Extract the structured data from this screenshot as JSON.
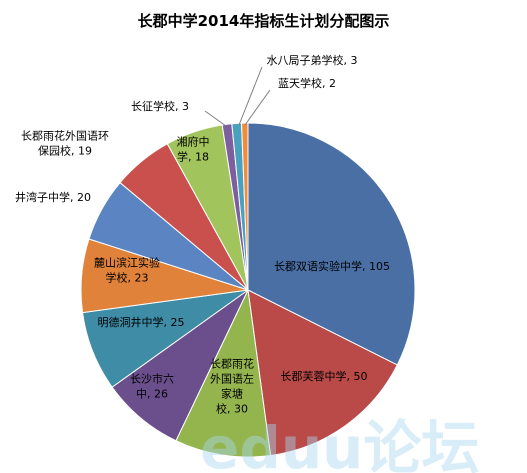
{
  "chart_data": {
    "type": "pie",
    "title": "长郡中学2014年指标生计划分配图示",
    "slices": [
      {
        "name": "长郡双语实验中学",
        "value": 105,
        "label": [
          "长郡双语实验中学, 105"
        ],
        "color": "#4a6fa5"
      },
      {
        "name": "长郡芙蓉中学",
        "value": 50,
        "label": [
          "长郡芙蓉中学, 50"
        ],
        "color": "#b94a48"
      },
      {
        "name": "长郡雨花外国语左家塘校",
        "value": 30,
        "label": [
          "长郡雨花",
          "外国语左",
          "家塘",
          "校, 30"
        ],
        "color": "#94b54e"
      },
      {
        "name": "长沙市六中",
        "value": 26,
        "label": [
          "长沙市六",
          "中, 26"
        ],
        "color": "#6b4f8c"
      },
      {
        "name": "明德洞井中学",
        "value": 25,
        "label": [
          "明德洞井中学, 25"
        ],
        "color": "#3e8ca6"
      },
      {
        "name": "麓山滨江实验学校",
        "value": 23,
        "label": [
          "麓山滨江实验",
          "学校, 23"
        ],
        "color": "#e0823a"
      },
      {
        "name": "井湾子中学",
        "value": 20,
        "label": [
          "井湾子中学, 20"
        ],
        "color": "#5a84c2"
      },
      {
        "name": "长郡雨花外国语环保园校",
        "value": 19,
        "label": [
          "长郡雨花外国语环",
          "保园校, 19"
        ],
        "color": "#c9504d"
      },
      {
        "name": "湘府中学",
        "value": 18,
        "label": [
          "湘府中",
          "学, 18"
        ],
        "color": "#a2c45c"
      },
      {
        "name": "长征学校",
        "value": 3,
        "label": [
          "长征学校, 3"
        ],
        "color": "#7d5fa0"
      },
      {
        "name": "水八局子弟学校",
        "value": 3,
        "label": [
          "水八局子弟学校, 3"
        ],
        "color": "#4aa0bd"
      },
      {
        "name": "蓝天学校",
        "value": 2,
        "label": [
          "蓝天学校, 2"
        ],
        "color": "#f08c3c"
      }
    ]
  },
  "watermark": {
    "text": "eduu论坛",
    "colors": [
      "#f0a0a0",
      "#a8d8ee",
      "#b8b8b8"
    ]
  }
}
